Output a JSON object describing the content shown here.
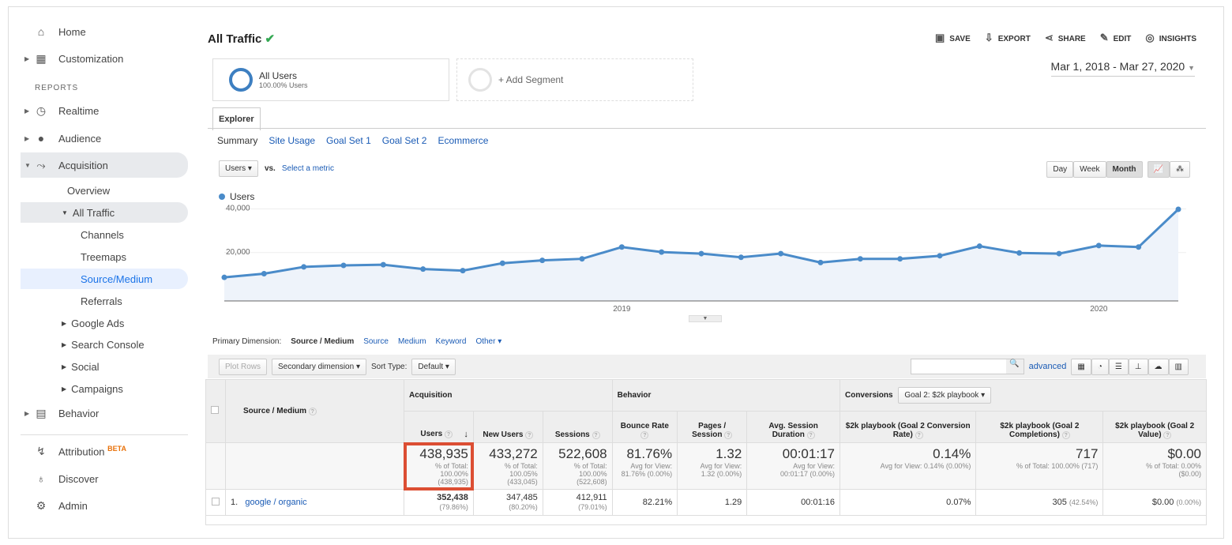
{
  "sidebar": {
    "home": "Home",
    "customization": "Customization",
    "reports": "REPORTS",
    "realtime": "Realtime",
    "audience": "Audience",
    "acquisition": "Acquisition",
    "overview": "Overview",
    "all_traffic": "All Traffic",
    "channels": "Channels",
    "treemaps": "Treemaps",
    "source_medium": "Source/Medium",
    "referrals": "Referrals",
    "google_ads": "Google Ads",
    "search_console": "Search Console",
    "social": "Social",
    "campaigns": "Campaigns",
    "behavior": "Behavior",
    "attribution": "Attribution",
    "beta": "BETA",
    "discover": "Discover",
    "admin": "Admin"
  },
  "header": {
    "title": "All Traffic",
    "save": "SAVE",
    "export": "EXPORT",
    "share": "SHARE",
    "edit": "EDIT",
    "insights": "INSIGHTS"
  },
  "segments": {
    "all_users": "All Users",
    "all_users_pct": "100.00% Users",
    "add": "+ Add Segment"
  },
  "date_range": "Mar 1, 2018 - Mar 27, 2020",
  "tabs": {
    "explorer": "Explorer",
    "summary": "Summary",
    "site_usage": "Site Usage",
    "goal1": "Goal Set 1",
    "goal2": "Goal Set 2",
    "ecommerce": "Ecommerce"
  },
  "chart_controls": {
    "metric": "Users",
    "vs": "vs.",
    "select_metric": "Select a metric",
    "day": "Day",
    "week": "Week",
    "month": "Month"
  },
  "chart_data": {
    "type": "line",
    "legend": "Users",
    "color": "#4a8bc9",
    "x": [
      "2018-03",
      "2018-04",
      "2018-05",
      "2018-06",
      "2018-07",
      "2018-08",
      "2018-09",
      "2018-10",
      "2018-11",
      "2018-12",
      "2019-01",
      "2019-02",
      "2019-03",
      "2019-04",
      "2019-05",
      "2019-06",
      "2019-07",
      "2019-08",
      "2019-09",
      "2019-10",
      "2019-11",
      "2019-12",
      "2020-01",
      "2020-02",
      "2020-03"
    ],
    "values": [
      10800,
      12500,
      15600,
      16300,
      16600,
      14600,
      13900,
      17300,
      18600,
      19300,
      24700,
      22400,
      21700,
      20000,
      21700,
      17600,
      19300,
      19300,
      20700,
      25100,
      22000,
      21700,
      25400,
      24700,
      42000
    ],
    "yticks": [
      "20,000",
      "40,000"
    ],
    "xticks": [
      "2019",
      "2020"
    ],
    "ylim": [
      0,
      42000
    ]
  },
  "primary_dimension": {
    "label": "Primary Dimension:",
    "selected": "Source / Medium",
    "options": [
      "Source",
      "Medium",
      "Keyword",
      "Other"
    ]
  },
  "toolbar": {
    "plot_rows": "Plot Rows",
    "secondary": "Secondary dimension",
    "sort_type": "Sort Type:",
    "sort_default": "Default",
    "advanced": "advanced"
  },
  "table": {
    "dim_header": "Source / Medium",
    "groups": {
      "acq": "Acquisition",
      "beh": "Behavior",
      "conv": "Conversions",
      "goal": "Goal 2: $2k playbook"
    },
    "columns": [
      "Users",
      "New Users",
      "Sessions",
      "Bounce Rate",
      "Pages / Session",
      "Avg. Session Duration",
      "$2k playbook (Goal 2 Conversion Rate)",
      "$2k playbook (Goal 2 Completions)",
      "$2k playbook (Goal 2 Value)"
    ],
    "totals": [
      {
        "v": "438,935",
        "s1": "% of Total: 100.00%",
        "s2": "(438,935)"
      },
      {
        "v": "433,272",
        "s1": "% of Total: 100.05%",
        "s2": "(433,045)"
      },
      {
        "v": "522,608",
        "s1": "% of Total: 100.00%",
        "s2": "(522,608)"
      },
      {
        "v": "81.76%",
        "s1": "Avg for View:",
        "s2": "81.76% (0.00%)"
      },
      {
        "v": "1.32",
        "s1": "Avg for View:",
        "s2": "1.32 (0.00%)"
      },
      {
        "v": "00:01:17",
        "s1": "Avg for View:",
        "s2": "00:01:17 (0.00%)"
      },
      {
        "v": "0.14%",
        "s1": "Avg for View: 0.14% (0.00%)",
        "s2": ""
      },
      {
        "v": "717",
        "s1": "% of Total: 100.00% (717)",
        "s2": ""
      },
      {
        "v": "$0.00",
        "s1": "% of Total: 0.00%",
        "s2": "($0.00)"
      }
    ],
    "rows": [
      {
        "idx": "1.",
        "name": "google / organic",
        "cells": [
          {
            "v": "352,438",
            "p": "(79.86%)"
          },
          {
            "v": "347,485",
            "p": "(80.20%)"
          },
          {
            "v": "412,911",
            "p": "(79.01%)"
          },
          {
            "v": "82.21%",
            "p": ""
          },
          {
            "v": "1.29",
            "p": ""
          },
          {
            "v": "00:01:16",
            "p": ""
          },
          {
            "v": "0.07%",
            "p": ""
          },
          {
            "v": "305",
            "p": "(42.54%)"
          },
          {
            "v": "$0.00",
            "p": "(0.00%)"
          }
        ]
      }
    ]
  }
}
